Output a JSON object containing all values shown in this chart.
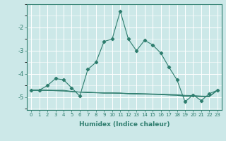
{
  "xlabel": "Humidex (Indice chaleur)",
  "x": [
    0,
    1,
    2,
    3,
    4,
    5,
    6,
    7,
    8,
    9,
    10,
    11,
    12,
    13,
    14,
    15,
    16,
    17,
    18,
    19,
    20,
    21,
    22,
    23
  ],
  "y_main": [
    -4.7,
    -4.7,
    -4.5,
    -4.2,
    -4.25,
    -4.6,
    -4.95,
    -3.8,
    -3.5,
    -2.6,
    -2.5,
    -1.3,
    -2.5,
    -3.0,
    -2.55,
    -2.75,
    -3.1,
    -3.7,
    -4.25,
    -5.2,
    -4.9,
    -5.15,
    -4.85,
    -4.7
  ],
  "y_flat1": [
    -4.7,
    -4.7,
    -4.7,
    -4.7,
    -4.7,
    -4.75,
    -4.78,
    -4.78,
    -4.8,
    -4.82,
    -4.82,
    -4.82,
    -4.84,
    -4.84,
    -4.85,
    -4.86,
    -4.87,
    -4.88,
    -4.89,
    -4.92,
    -4.93,
    -4.95,
    -4.96,
    -4.7
  ],
  "y_flat2": [
    -4.7,
    -4.7,
    -4.7,
    -4.72,
    -4.73,
    -4.76,
    -4.78,
    -4.8,
    -4.81,
    -4.82,
    -4.82,
    -4.83,
    -4.85,
    -4.86,
    -4.86,
    -4.87,
    -4.88,
    -4.9,
    -4.91,
    -4.94,
    -4.95,
    -4.97,
    -4.97,
    -4.7
  ],
  "y_flat3": [
    -4.7,
    -4.7,
    -4.71,
    -4.72,
    -4.73,
    -4.76,
    -4.78,
    -4.8,
    -4.81,
    -4.82,
    -4.82,
    -4.83,
    -4.85,
    -4.86,
    -4.87,
    -4.88,
    -4.89,
    -4.91,
    -4.92,
    -4.96,
    -4.96,
    -4.98,
    -4.98,
    -4.7
  ],
  "line_color": "#2e7d6e",
  "bg_color": "#cce8e8",
  "grid_color": "#ffffff",
  "ylim": [
    -5.55,
    -1.0
  ],
  "xlim": [
    -0.5,
    23.5
  ],
  "yticks": [
    -5,
    -4,
    -3,
    -2
  ],
  "xticks": [
    0,
    1,
    2,
    3,
    4,
    5,
    6,
    7,
    8,
    9,
    10,
    11,
    12,
    13,
    14,
    15,
    16,
    17,
    18,
    19,
    20,
    21,
    22,
    23
  ]
}
